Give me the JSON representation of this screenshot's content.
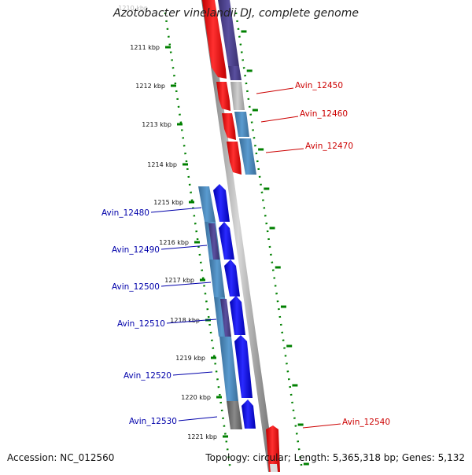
{
  "title": "Azotobacter vinelandii DJ, complete genome",
  "footer": {
    "accession": "Accession: NC_012560",
    "summary": "Topology: circular; Length: 5,365,318 bp; Genes: 5,132"
  },
  "ruler": {
    "top_cut_label": "1210 kbp",
    "ticks": [
      "1211 kbp",
      "1212 kbp",
      "1213 kbp",
      "1214 kbp",
      "1215 kbp",
      "1216 kbp",
      "1217 kbp",
      "1218 kbp",
      "1219 kbp",
      "1220 kbp",
      "1221 kbp"
    ]
  },
  "colors": {
    "red": "#ff0000",
    "blue": "#0000ff",
    "steel_blue": "#4682b4",
    "dark_slate_blue": "#483d8b",
    "grey": "#808080",
    "light_grey": "#b0b0b0",
    "tick_green": "#008000",
    "label_red": "#cc0000",
    "label_blue": "#0000aa"
  },
  "genes_right": [
    {
      "label": "Avin_12450",
      "color": "red"
    },
    {
      "label": "Avin_12460",
      "color": "red"
    },
    {
      "label": "Avin_12470",
      "color": "red"
    },
    {
      "label": "Avin_12540",
      "color": "red"
    }
  ],
  "genes_left": [
    {
      "label": "Avin_12480",
      "color": "blue"
    },
    {
      "label": "Avin_12490",
      "color": "blue"
    },
    {
      "label": "Avin_12500",
      "color": "blue"
    },
    {
      "label": "Avin_12510",
      "color": "blue"
    },
    {
      "label": "Avin_12520",
      "color": "blue"
    },
    {
      "label": "Avin_12530",
      "color": "blue"
    }
  ]
}
